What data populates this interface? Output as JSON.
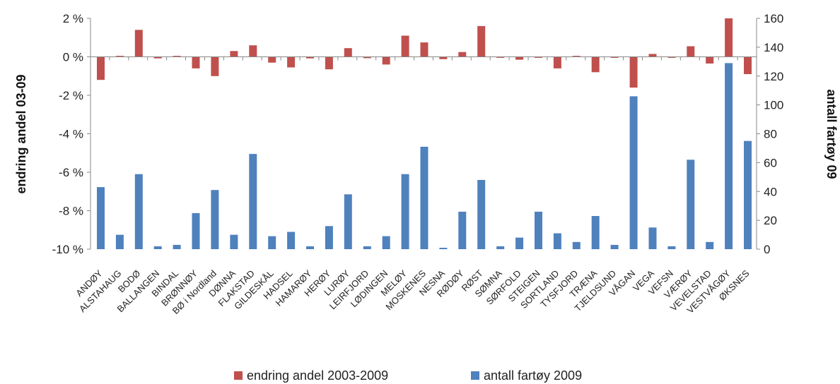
{
  "chart_data": {
    "type": "bar",
    "title": "",
    "y_left_label": "endring andel 03-09",
    "y_right_label": "antall fartøy 09",
    "y_left_range": [
      -10,
      2
    ],
    "y_left_ticks": [
      "2 %",
      "0 %",
      "-2 %",
      "-4 %",
      "-6 %",
      "-8 %",
      "-10 %"
    ],
    "y_right_range": [
      0,
      160
    ],
    "y_right_ticks": [
      "160",
      "140",
      "120",
      "100",
      "80",
      "60",
      "40",
      "20",
      "0"
    ],
    "grid": false,
    "legend_position": "bottom",
    "categories": [
      "ANDØY",
      "ALSTAHAUG",
      "BODØ",
      "BALLANGEN",
      "BINDAL",
      "BRØNNØY",
      "BØ i Nordland",
      "DØNNA",
      "FLAKSTAD",
      "GILDESKÅL",
      "HADSEL",
      "HAMARØY",
      "HERØY",
      "LURØY",
      "LEIRFJORD",
      "LØDINGEN",
      "MELØY",
      "MOSKENES",
      "NESNA",
      "RØDØY",
      "RØST",
      "SØMNA",
      "SØRFOLD",
      "STEIGEN",
      "SORTLAND",
      "TYSFJORD",
      "TRÆNA",
      "TJELDSUND",
      "VÅGAN",
      "VEGA",
      "VEFSN",
      "VÆRØY",
      "VEVELSTAD",
      "VESTVÅGØY",
      "ØKSNES"
    ],
    "series": [
      {
        "name": "endring andel 2003-2009",
        "axis": "left",
        "color": "#c0504d",
        "values": [
          -1.2,
          0.05,
          1.4,
          -0.08,
          0.05,
          -0.6,
          -1.0,
          0.3,
          0.6,
          -0.3,
          -0.55,
          -0.08,
          -0.65,
          0.45,
          -0.07,
          -0.4,
          1.1,
          0.75,
          -0.12,
          0.25,
          1.6,
          -0.05,
          -0.15,
          -0.05,
          -0.6,
          0.05,
          -0.8,
          -0.05,
          -1.6,
          0.15,
          -0.05,
          0.55,
          -0.35,
          2.0,
          -0.9
        ]
      },
      {
        "name": "antall fartøy 2009",
        "axis": "right",
        "color": "#4f81bd",
        "values": [
          43,
          10,
          52,
          2,
          3,
          25,
          41,
          10,
          66,
          9,
          12,
          2,
          16,
          38,
          2,
          9,
          52,
          71,
          1,
          26,
          48,
          2,
          8,
          26,
          11,
          5,
          23,
          3,
          106,
          15,
          2,
          62,
          5,
          129,
          75
        ]
      }
    ]
  }
}
